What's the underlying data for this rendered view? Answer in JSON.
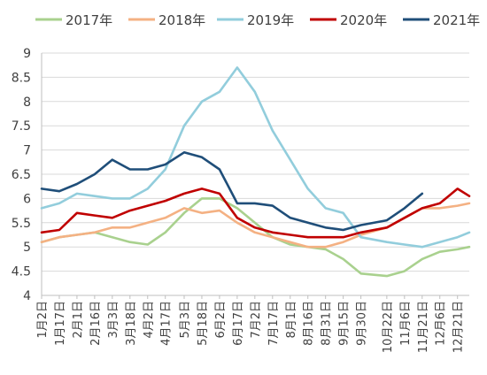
{
  "chart_data": {
    "type": "line",
    "title": "",
    "xlabel": "",
    "ylabel": "",
    "ylim": [
      4,
      9
    ],
    "yticks": [
      "4",
      "4.5",
      "5",
      "5.5",
      "6",
      "6.5",
      "7",
      "7.5",
      "8",
      "8.5",
      "9"
    ],
    "grid": true,
    "legend_position": "top",
    "x_ticks": [
      "1月2日",
      "1月17日",
      "2月1日",
      "2月16日",
      "3月3日",
      "3月18日",
      "4月2日",
      "4月17日",
      "5月3日",
      "5月18日",
      "6月2日",
      "6月17日",
      "7月2日",
      "7月17日",
      "8月1日",
      "8月16日",
      "8月31日",
      "9月15日",
      "9月30日",
      "10月22日",
      "11月6日",
      "11月21日",
      "12月6日",
      "12月21日"
    ],
    "x_range": [
      "1月2日",
      "12月31日"
    ],
    "series": [
      {
        "name": "2017年",
        "color": "#A9D18E",
        "x": [
          "1月2日",
          "1月17日",
          "2月1日",
          "2月16日",
          "3月3日",
          "3月18日",
          "4月2日",
          "4月17日",
          "5月3日",
          "5月18日",
          "6月2日",
          "6月17日",
          "7月2日",
          "7月17日",
          "8月1日",
          "8月16日",
          "8月31日",
          "9月15日",
          "9月30日",
          "10月22日",
          "11月6日",
          "11月21日",
          "12月6日",
          "12月21日",
          "12月31日"
        ],
        "values": [
          5.1,
          5.2,
          5.25,
          5.3,
          5.2,
          5.1,
          5.05,
          5.3,
          5.7,
          6.0,
          6.0,
          5.8,
          5.5,
          5.2,
          5.05,
          5.0,
          4.95,
          4.75,
          4.45,
          4.4,
          4.5,
          4.75,
          4.9,
          4.95,
          5.0
        ]
      },
      {
        "name": "2018年",
        "color": "#F4B183",
        "x": [
          "1月2日",
          "1月17日",
          "2月1日",
          "2月16日",
          "3月3日",
          "3月18日",
          "4月2日",
          "4月17日",
          "5月3日",
          "5月18日",
          "6月2日",
          "6月17日",
          "7月2日",
          "7月17日",
          "8月1日",
          "8月16日",
          "8月31日",
          "9月15日",
          "9月30日",
          "10月22日",
          "11月6日",
          "11月21日",
          "12月6日",
          "12月21日",
          "12月31日"
        ],
        "values": [
          5.1,
          5.2,
          5.25,
          5.3,
          5.4,
          5.4,
          5.5,
          5.6,
          5.8,
          5.7,
          5.75,
          5.5,
          5.3,
          5.2,
          5.1,
          5.0,
          5.0,
          5.1,
          5.25,
          5.4,
          5.6,
          5.8,
          5.8,
          5.85,
          5.9
        ]
      },
      {
        "name": "2019年",
        "color": "#92CDDC",
        "x": [
          "1月2日",
          "1月17日",
          "2月1日",
          "2月16日",
          "3月3日",
          "3月18日",
          "4月2日",
          "4月17日",
          "5月3日",
          "5月18日",
          "6月2日",
          "6月17日",
          "7月2日",
          "7月17日",
          "8月1日",
          "8月16日",
          "8月31日",
          "9月15日",
          "9月30日",
          "10月22日",
          "11月6日",
          "11月21日",
          "12月6日",
          "12月21日",
          "12月31日"
        ],
        "values": [
          5.8,
          5.9,
          6.1,
          6.05,
          6.0,
          6.0,
          6.2,
          6.6,
          7.5,
          8.0,
          8.2,
          8.7,
          8.2,
          7.4,
          6.8,
          6.2,
          5.8,
          5.7,
          5.2,
          5.1,
          5.05,
          5.0,
          5.1,
          5.2,
          5.3
        ]
      },
      {
        "name": "2020年",
        "color": "#C00000",
        "x": [
          "1月2日",
          "1月17日",
          "2月1日",
          "2月16日",
          "3月3日",
          "3月18日",
          "4月2日",
          "4月17日",
          "5月3日",
          "5月18日",
          "6月2日",
          "6月17日",
          "7月2日",
          "7月17日",
          "8月1日",
          "8月16日",
          "8月31日",
          "9月15日",
          "9月30日",
          "10月22日",
          "11月6日",
          "11月21日",
          "12月6日",
          "12月21日",
          "12月31日"
        ],
        "values": [
          5.3,
          5.35,
          5.7,
          5.65,
          5.6,
          5.75,
          5.85,
          5.95,
          6.1,
          6.2,
          6.1,
          5.6,
          5.4,
          5.3,
          5.25,
          5.2,
          5.2,
          5.2,
          5.3,
          5.4,
          5.6,
          5.8,
          5.9,
          6.2,
          6.05
        ]
      },
      {
        "name": "2021年",
        "color": "#1F4E79",
        "x": [
          "1月2日",
          "1月17日",
          "2月1日",
          "2月16日",
          "3月3日",
          "3月18日",
          "4月2日",
          "4月17日",
          "5月3日",
          "5月18日",
          "6月2日",
          "6月17日",
          "7月2日",
          "7月17日",
          "8月1日",
          "8月16日",
          "8月31日",
          "9月15日",
          "9月30日",
          "10月22日",
          "11月6日",
          "11月21日"
        ],
        "values": [
          6.2,
          6.15,
          6.3,
          6.5,
          6.8,
          6.6,
          6.6,
          6.7,
          6.95,
          6.85,
          6.6,
          5.9,
          5.9,
          5.85,
          5.6,
          5.5,
          5.4,
          5.35,
          5.45,
          5.55,
          5.8,
          6.1
        ]
      }
    ]
  }
}
